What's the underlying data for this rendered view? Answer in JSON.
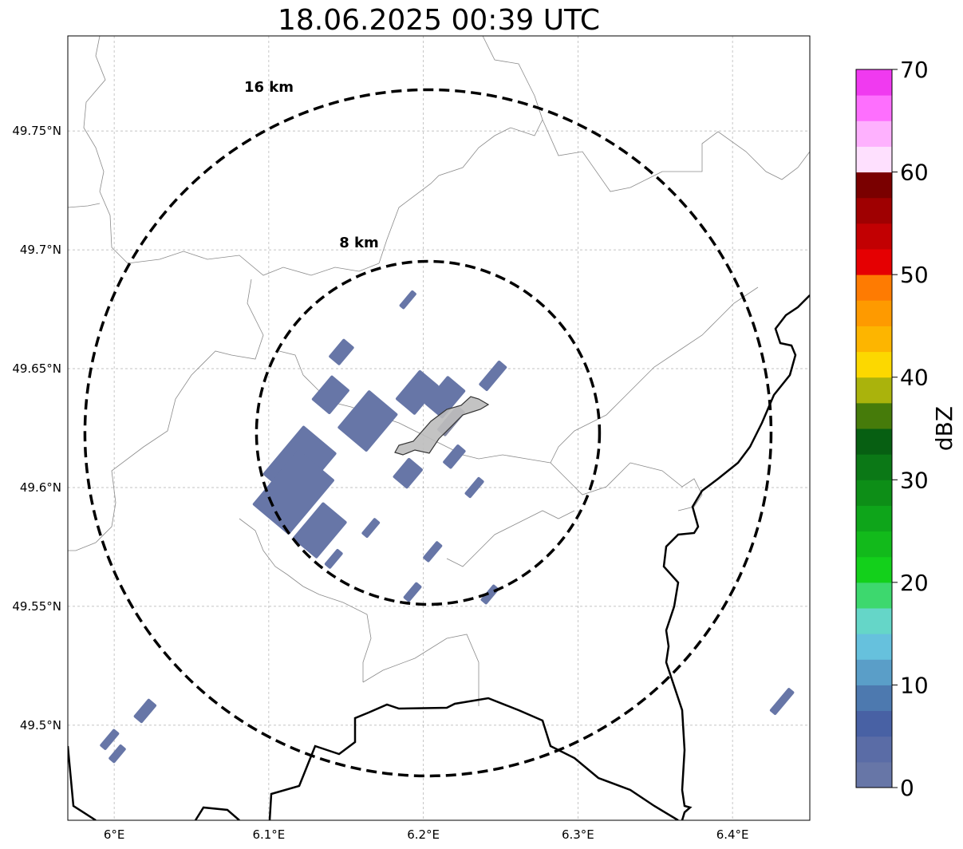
{
  "title": "18.06.2025 00:39 UTC",
  "map": {
    "extent": {
      "lon_min": 5.97,
      "lon_max": 6.45,
      "lat_min": 49.46,
      "lat_max": 49.79
    },
    "x_ticks": [
      {
        "lon": 6.0,
        "label": "6°E"
      },
      {
        "lon": 6.1,
        "label": "6.1°E"
      },
      {
        "lon": 6.2,
        "label": "6.2°E"
      },
      {
        "lon": 6.3,
        "label": "6.3°E"
      },
      {
        "lon": 6.4,
        "label": "6.4°E"
      }
    ],
    "y_ticks": [
      {
        "lat": 49.5,
        "label": "49.5°N"
      },
      {
        "lat": 49.55,
        "label": "49.55°N"
      },
      {
        "lat": 49.6,
        "label": "49.6°N"
      },
      {
        "lat": 49.65,
        "label": "49.65°N"
      },
      {
        "lat": 49.7,
        "label": "49.7°N"
      },
      {
        "lat": 49.75,
        "label": "49.75°N"
      }
    ],
    "range_rings": [
      {
        "label": "8 km",
        "center_lon": 6.203,
        "center_lat": 49.623
      },
      {
        "label": "16 km",
        "center_lon": 6.203,
        "center_lat": 49.623
      }
    ],
    "grid": true
  },
  "radar_cells_dbz": [
    {
      "lon": 6.19,
      "lat": 49.679,
      "dbz": 0
    },
    {
      "lon": 6.147,
      "lat": 49.657,
      "dbz": 0
    },
    {
      "lon": 6.14,
      "lat": 49.639,
      "dbz": 0
    },
    {
      "lon": 6.164,
      "lat": 49.628,
      "dbz": 0
    },
    {
      "lon": 6.12,
      "lat": 49.61,
      "dbz": 0
    },
    {
      "lon": 6.116,
      "lat": 49.598,
      "dbz": 0
    },
    {
      "lon": 6.133,
      "lat": 49.582,
      "dbz": 0
    },
    {
      "lon": 6.196,
      "lat": 49.64,
      "dbz": 0
    },
    {
      "lon": 6.214,
      "lat": 49.638,
      "dbz": 0
    },
    {
      "lon": 6.245,
      "lat": 49.647,
      "dbz": 0
    },
    {
      "lon": 6.19,
      "lat": 49.606,
      "dbz": 0
    },
    {
      "lon": 6.22,
      "lat": 49.613,
      "dbz": 0
    },
    {
      "lon": 6.233,
      "lat": 49.6,
      "dbz": 0
    },
    {
      "lon": 6.166,
      "lat": 49.583,
      "dbz": 0
    },
    {
      "lon": 6.206,
      "lat": 49.573,
      "dbz": 0
    },
    {
      "lon": 6.142,
      "lat": 49.57,
      "dbz": 0
    },
    {
      "lon": 6.193,
      "lat": 49.556,
      "dbz": 0
    },
    {
      "lon": 6.243,
      "lat": 49.555,
      "dbz": 0
    },
    {
      "lon": 6.02,
      "lat": 49.506,
      "dbz": 0
    },
    {
      "lon": 5.997,
      "lat": 49.494,
      "dbz": 0
    },
    {
      "lon": 6.002,
      "lat": 49.488,
      "dbz": 0
    },
    {
      "lon": 6.432,
      "lat": 49.51,
      "dbz": 0
    },
    {
      "lon": 6.218,
      "lat": 49.628,
      "dbz": 5
    }
  ],
  "colorbar": {
    "label": "dBZ",
    "min": 0,
    "max": 70,
    "step": 2.5,
    "ticks": [
      "0",
      "10",
      "20",
      "30",
      "40",
      "50",
      "60",
      "70"
    ],
    "colors": [
      "#6776a7",
      "#5a6ca6",
      "#4861a4",
      "#4d79af",
      "#5a9ec8",
      "#66c1dd",
      "#65d6c8",
      "#3dd86e",
      "#13d01b",
      "#12ba1b",
      "#0ea51a",
      "#0d8e17",
      "#0b7816",
      "#075f12",
      "#467b0a",
      "#aab30c",
      "#fcd800",
      "#fdb500",
      "#fe9a00",
      "#fe7b02",
      "#e50002",
      "#c20002",
      "#9f0001",
      "#7a0000",
      "#fee0fe",
      "#feb1fe",
      "#fe6ffe",
      "#f03af0"
    ]
  }
}
